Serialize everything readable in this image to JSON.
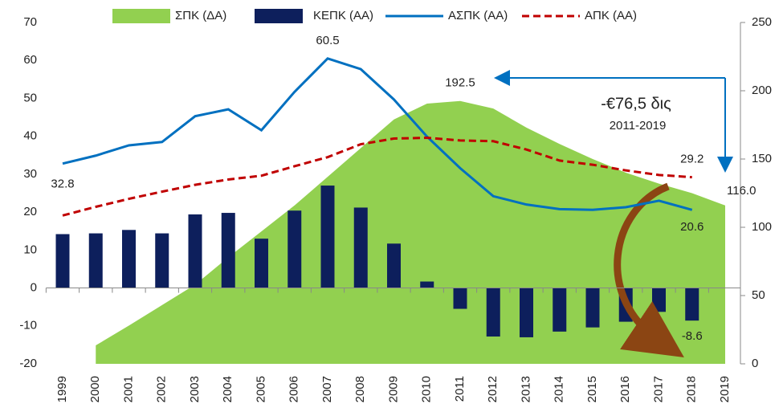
{
  "chart_data": {
    "type": "combo",
    "categories": [
      "1999",
      "2000",
      "2001",
      "2002",
      "2003",
      "2004",
      "2005",
      "2006",
      "2007",
      "2008",
      "2009",
      "2010",
      "2011",
      "2012",
      "2013",
      "2014",
      "2015",
      "2016",
      "2017",
      "2018",
      "2019"
    ],
    "ylim": [
      -20,
      70
    ],
    "yticks": [
      -20,
      -10,
      0,
      10,
      20,
      30,
      40,
      50,
      60,
      70
    ],
    "y2lim": [
      0,
      250
    ],
    "y2ticks": [
      0,
      50,
      100,
      150,
      200,
      250
    ],
    "legend": "top",
    "series": [
      {
        "name": "ΣΠΚ (ΔΑ)",
        "type": "area",
        "axis": "y2",
        "color": "#92d050",
        "values": [
          null,
          13.5,
          28,
          43,
          58,
          78,
          97,
          116,
          137,
          158,
          179,
          190.6,
          192.5,
          187,
          173,
          161,
          150,
          140,
          132,
          125,
          116
        ],
        "value_labels": [
          null,
          null,
          null,
          null,
          null,
          null,
          null,
          null,
          null,
          null,
          null,
          null,
          "192.5",
          null,
          null,
          null,
          null,
          null,
          null,
          null,
          "116.0"
        ]
      },
      {
        "name": "ΚΕΠΚ (ΑΑ)",
        "type": "bar",
        "color": "#0d1f5c",
        "values": [
          14.2,
          14.4,
          15.3,
          14.4,
          19.4,
          19.8,
          13.0,
          20.4,
          27.0,
          21.2,
          11.7,
          1.7,
          -5.5,
          -12.8,
          -13.0,
          -11.5,
          -10.4,
          -8.9,
          -6.3,
          -8.6,
          null
        ],
        "value_labels": [
          null,
          null,
          null,
          null,
          null,
          null,
          null,
          null,
          null,
          null,
          null,
          null,
          null,
          null,
          null,
          null,
          null,
          null,
          null,
          "-8.6",
          null
        ]
      },
      {
        "name": "ΑΣΠΚ (ΑΑ)",
        "type": "line",
        "color": "#0070c0",
        "dashed": false,
        "values": [
          32.8,
          34.9,
          37.6,
          38.5,
          45.3,
          47.1,
          41.6,
          51.7,
          60.5,
          57.7,
          49.7,
          39.9,
          31.6,
          24.2,
          22.0,
          20.8,
          20.6,
          21.3,
          23.0,
          20.6,
          null
        ],
        "value_labels": [
          "32.8",
          null,
          null,
          null,
          null,
          null,
          null,
          null,
          "60.5",
          null,
          null,
          null,
          null,
          null,
          null,
          null,
          null,
          null,
          null,
          "20.6",
          null
        ]
      },
      {
        "name": "ΑΠΚ (ΑΑ)",
        "type": "line",
        "color": "#c00000",
        "dashed": true,
        "values": [
          19.1,
          21.4,
          23.5,
          25.4,
          27.2,
          28.6,
          29.6,
          32.1,
          34.5,
          37.9,
          39.4,
          39.6,
          38.9,
          38.7,
          36.5,
          33.6,
          32.5,
          31.0,
          29.8,
          29.2,
          null
        ],
        "value_labels": [
          null,
          null,
          null,
          null,
          null,
          null,
          null,
          null,
          null,
          null,
          null,
          null,
          null,
          null,
          null,
          null,
          null,
          null,
          null,
          "29.2",
          null
        ]
      }
    ],
    "annotations": [
      "-€76,5 δις",
      "2011-2019"
    ]
  }
}
